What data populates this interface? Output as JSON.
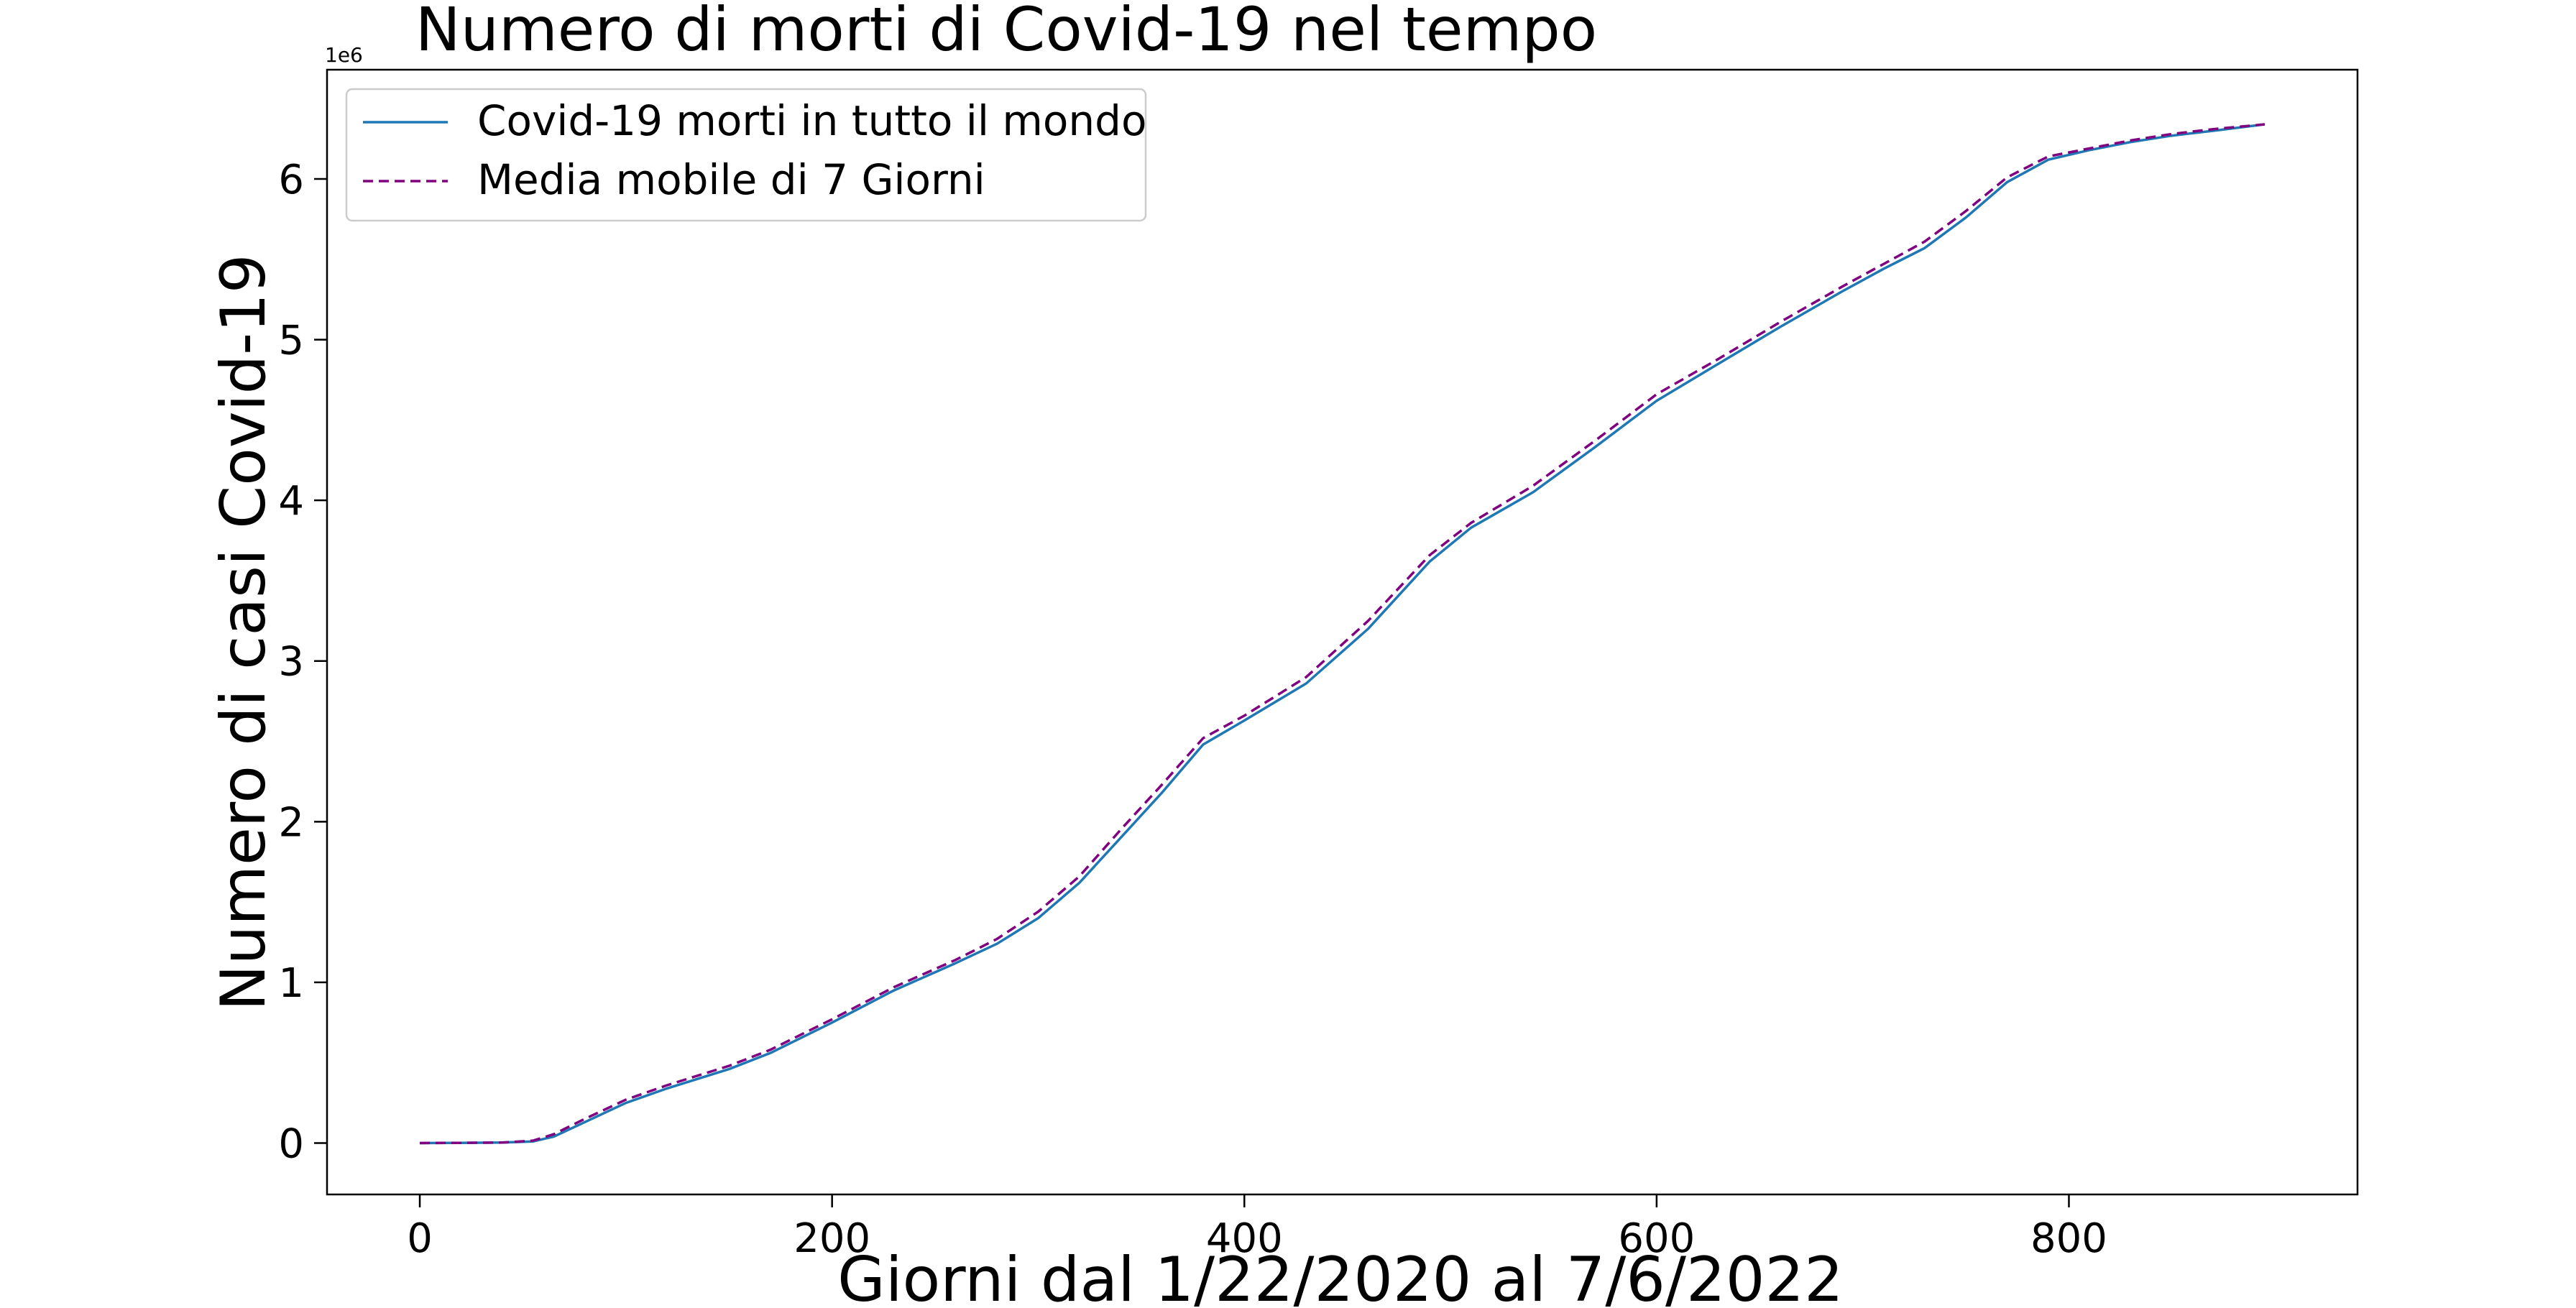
{
  "chart_data": {
    "type": "line",
    "title": "Numero di morti di Covid-19 nel tempo",
    "xlabel": "Giorni dal 1/22/2020 al 7/6/2022",
    "ylabel": "Numero di casi Covid-19",
    "y_offset_label": "1e6",
    "xlim": [
      -45,
      940
    ],
    "ylim": [
      -0.32,
      6.68
    ],
    "x_ticks": [
      0,
      200,
      400,
      600,
      800
    ],
    "y_ticks": [
      0,
      1,
      2,
      3,
      4,
      5,
      6
    ],
    "x_tick_labels": [
      "0",
      "200",
      "400",
      "600",
      "800"
    ],
    "y_tick_labels": [
      "0",
      "1",
      "2",
      "3",
      "4",
      "5",
      "6"
    ],
    "y_unit_multiplier": 1000000,
    "grid": false,
    "legend_position": "top-left",
    "series": [
      {
        "name": "Covid-19 morti in tutto il mondo",
        "color": "#1f77b4",
        "style": "solid",
        "x": [
          0,
          20,
          40,
          55,
          65,
          80,
          100,
          120,
          150,
          170,
          200,
          230,
          260,
          280,
          300,
          320,
          340,
          360,
          380,
          400,
          430,
          460,
          490,
          510,
          540,
          570,
          600,
          630,
          660,
          690,
          710,
          730,
          750,
          770,
          790,
          810,
          830,
          850,
          870,
          895
        ],
        "y": [
          0,
          0.001,
          0.003,
          0.01,
          0.04,
          0.13,
          0.25,
          0.34,
          0.46,
          0.56,
          0.75,
          0.95,
          1.12,
          1.24,
          1.4,
          1.62,
          1.9,
          2.18,
          2.48,
          2.63,
          2.86,
          3.2,
          3.62,
          3.83,
          4.05,
          4.33,
          4.62,
          4.85,
          5.08,
          5.3,
          5.44,
          5.57,
          5.76,
          5.98,
          6.12,
          6.18,
          6.23,
          6.27,
          6.3,
          6.34
        ]
      },
      {
        "name": "Media mobile di 7 Giorni",
        "color": "#800080",
        "style": "dashed",
        "x": [
          0,
          20,
          40,
          55,
          65,
          80,
          100,
          120,
          150,
          170,
          200,
          230,
          260,
          280,
          300,
          320,
          340,
          360,
          380,
          400,
          430,
          460,
          490,
          510,
          540,
          570,
          600,
          630,
          660,
          690,
          710,
          730,
          750,
          770,
          790,
          810,
          830,
          850,
          870,
          895
        ],
        "y": [
          0,
          0.001,
          0.003,
          0.015,
          0.055,
          0.15,
          0.27,
          0.36,
          0.48,
          0.58,
          0.77,
          0.97,
          1.14,
          1.27,
          1.44,
          1.66,
          1.95,
          2.23,
          2.52,
          2.66,
          2.9,
          3.25,
          3.66,
          3.86,
          4.09,
          4.37,
          4.66,
          4.88,
          5.11,
          5.33,
          5.47,
          5.61,
          5.8,
          6.01,
          6.14,
          6.19,
          6.24,
          6.28,
          6.31,
          6.34
        ]
      }
    ]
  }
}
